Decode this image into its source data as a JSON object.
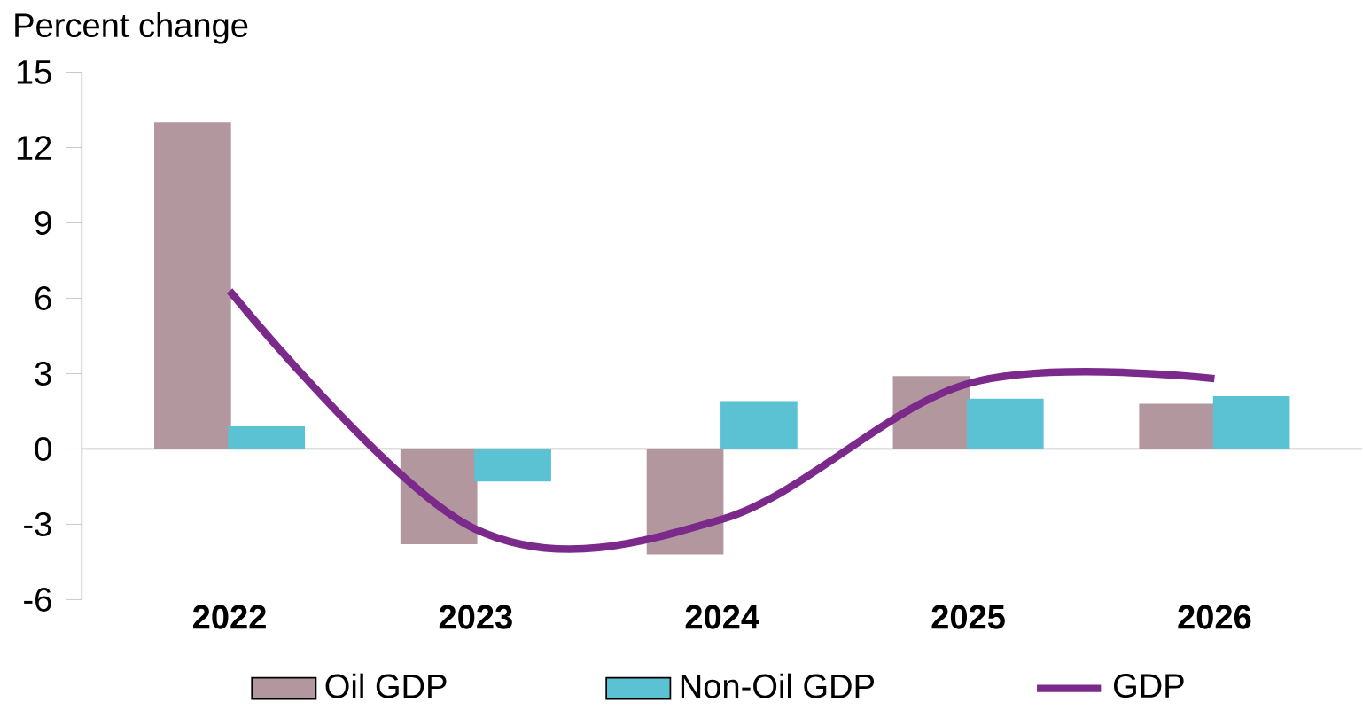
{
  "chart_data": {
    "type": "bar",
    "ylabel": "Percent change",
    "categories": [
      "2022",
      "2023",
      "2024",
      "2025",
      "2026"
    ],
    "series": [
      {
        "name": "Oil GDP",
        "color": "#b3979f",
        "values": [
          13.0,
          -3.8,
          -4.2,
          2.9,
          1.8
        ]
      },
      {
        "name": "Non-Oil GDP",
        "color": "#5bc2d3",
        "values": [
          0.9,
          -1.3,
          1.9,
          2.0,
          2.1
        ]
      },
      {
        "name": "GDP",
        "type": "line",
        "color": "#7b2a8c",
        "values": [
          6.3,
          -3.2,
          -2.8,
          2.6,
          2.8
        ]
      }
    ],
    "ylim": [
      -6,
      15
    ],
    "yticks": [
      -6,
      -3,
      0,
      3,
      6,
      9,
      12,
      15
    ],
    "grid": false,
    "ref_lines": [
      {
        "axis": "y",
        "value": 0,
        "color": "#bfbfbf"
      }
    ],
    "legend": "bottom",
    "marker": "none"
  }
}
